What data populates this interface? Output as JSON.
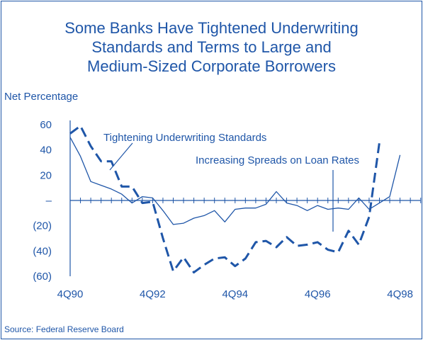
{
  "title_lines": [
    "Some Banks Have Tightened Underwriting",
    "Standards and Terms to Large and",
    "Medium-Sized Corporate Borrowers"
  ],
  "y_axis_title": "Net Percentage",
  "source": "Source: Federal Reserve Board",
  "colors": {
    "text": "#1f56a8",
    "solid_series": "#1f56a8",
    "dashed_series": "#1f56a8"
  },
  "chart_data": {
    "type": "line",
    "ylim": [
      -60,
      60
    ],
    "y_ticks": [
      {
        "value": 60,
        "label": "60"
      },
      {
        "value": 40,
        "label": "40"
      },
      {
        "value": 20,
        "label": "20"
      },
      {
        "value": 0,
        "label": "–"
      },
      {
        "value": -20,
        "label": "(20)"
      },
      {
        "value": -40,
        "label": "(40)"
      },
      {
        "value": -60,
        "label": "(60)"
      }
    ],
    "x_range": [
      "4Q90",
      "2Q99"
    ],
    "x_ticks": [
      "4Q90",
      "4Q92",
      "4Q94",
      "4Q96",
      "4Q98"
    ],
    "grid": false,
    "series": [
      {
        "name": "Tightening Underwriting Standards",
        "style": "solid",
        "points": [
          {
            "x": "4Q90",
            "y": 50
          },
          {
            "x": "1Q91",
            "y": 35
          },
          {
            "x": "2Q91",
            "y": 15
          },
          {
            "x": "3Q91",
            "y": 12
          },
          {
            "x": "4Q91",
            "y": 9
          },
          {
            "x": "1Q92",
            "y": 5
          },
          {
            "x": "2Q92",
            "y": -2
          },
          {
            "x": "3Q92",
            "y": 3
          },
          {
            "x": "4Q92",
            "y": 2
          },
          {
            "x": "1Q93",
            "y": -8
          },
          {
            "x": "2Q93",
            "y": -19
          },
          {
            "x": "3Q93",
            "y": -18
          },
          {
            "x": "4Q93",
            "y": -14
          },
          {
            "x": "1Q94",
            "y": -12
          },
          {
            "x": "2Q94",
            "y": -8
          },
          {
            "x": "3Q94",
            "y": -17
          },
          {
            "x": "4Q94",
            "y": -7
          },
          {
            "x": "1Q95",
            "y": -6
          },
          {
            "x": "2Q95",
            "y": -6
          },
          {
            "x": "3Q95",
            "y": -3
          },
          {
            "x": "4Q95",
            "y": 7
          },
          {
            "x": "1Q96",
            "y": -2
          },
          {
            "x": "2Q96",
            "y": -4
          },
          {
            "x": "3Q96",
            "y": -8
          },
          {
            "x": "4Q96",
            "y": -4
          },
          {
            "x": "1Q97",
            "y": -7
          },
          {
            "x": "2Q97",
            "y": -6
          },
          {
            "x": "3Q97",
            "y": -7
          },
          {
            "x": "4Q97",
            "y": 2
          },
          {
            "x": "1Q98",
            "y": -7
          },
          {
            "x": "2Q98",
            "y": -2
          },
          {
            "x": "3Q98",
            "y": 3
          },
          {
            "x": "4Q98",
            "y": 36
          }
        ]
      },
      {
        "name": "Increasing Spreads on Loan Rates",
        "style": "dashed",
        "points": [
          {
            "x": "4Q90",
            "y": 53
          },
          {
            "x": "1Q91",
            "y": 59
          },
          {
            "x": "2Q91",
            "y": 43
          },
          {
            "x": "3Q91",
            "y": 31
          },
          {
            "x": "4Q91",
            "y": 31
          },
          {
            "x": "1Q92",
            "y": 11
          },
          {
            "x": "2Q92",
            "y": 11
          },
          {
            "x": "3Q92",
            "y": -2
          },
          {
            "x": "4Q92",
            "y": -1
          },
          {
            "x": "1Q93",
            "y": -30
          },
          {
            "x": "2Q93",
            "y": -56
          },
          {
            "x": "3Q93",
            "y": -45
          },
          {
            "x": "4Q93",
            "y": -57
          },
          {
            "x": "1Q94",
            "y": -51
          },
          {
            "x": "2Q94",
            "y": -46
          },
          {
            "x": "3Q94",
            "y": -45
          },
          {
            "x": "4Q94",
            "y": -52
          },
          {
            "x": "1Q95",
            "y": -46
          },
          {
            "x": "2Q95",
            "y": -33
          },
          {
            "x": "3Q95",
            "y": -32
          },
          {
            "x": "4Q95",
            "y": -37
          },
          {
            "x": "1Q96",
            "y": -29
          },
          {
            "x": "2Q96",
            "y": -36
          },
          {
            "x": "3Q96",
            "y": -35
          },
          {
            "x": "4Q96",
            "y": -33
          },
          {
            "x": "1Q97",
            "y": -39
          },
          {
            "x": "2Q97",
            "y": -41
          },
          {
            "x": "3Q97",
            "y": -24
          },
          {
            "x": "4Q97",
            "y": -35
          },
          {
            "x": "1Q98",
            "y": -13
          },
          {
            "x": "2Q98",
            "y": 46
          }
        ]
      }
    ],
    "annotations": [
      {
        "text": "Tightening Underwriting Standards",
        "series": 0
      },
      {
        "text": "Increasing Spreads on Loan Rates",
        "series": 1
      }
    ]
  }
}
